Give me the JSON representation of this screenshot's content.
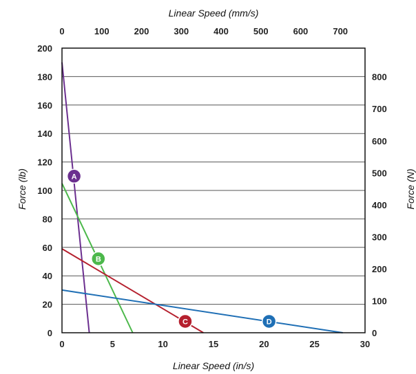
{
  "chart_data": {
    "type": "line",
    "xlabel": "Linear Speed (in/s)",
    "x2label": "Linear Speed (mm/s)",
    "ylabel": "Force (lb)",
    "y2label": "Force (N)",
    "xlim": [
      0,
      30
    ],
    "x2lim": [
      0,
      762
    ],
    "ylim": [
      0,
      200
    ],
    "y2lim": [
      0,
      889.6
    ],
    "x_ticks": [
      0,
      5,
      10,
      15,
      20,
      25,
      30
    ],
    "x2_ticks": [
      0,
      100,
      200,
      300,
      400,
      500,
      600,
      700
    ],
    "y_ticks": [
      0,
      20,
      40,
      60,
      80,
      100,
      120,
      140,
      160,
      180,
      200
    ],
    "y2_ticks": [
      0,
      100,
      200,
      300,
      400,
      500,
      600,
      700,
      800
    ],
    "grid": true,
    "series": [
      {
        "name": "A",
        "color": "#6b2f8f",
        "x": [
          0,
          2.7
        ],
        "y": [
          190,
          0
        ],
        "label_at": [
          1.2,
          110
        ]
      },
      {
        "name": "B",
        "color": "#4cb84b",
        "x": [
          0,
          7.0
        ],
        "y": [
          105,
          0
        ],
        "label_at": [
          3.6,
          52
        ]
      },
      {
        "name": "C",
        "color": "#b5202e",
        "x": [
          0,
          14.0
        ],
        "y": [
          59,
          0
        ],
        "label_at": [
          12.2,
          8
        ]
      },
      {
        "name": "D",
        "color": "#1f6fb5",
        "x": [
          0,
          27.8
        ],
        "y": [
          30,
          0
        ],
        "label_at": [
          20.5,
          8
        ]
      }
    ]
  }
}
